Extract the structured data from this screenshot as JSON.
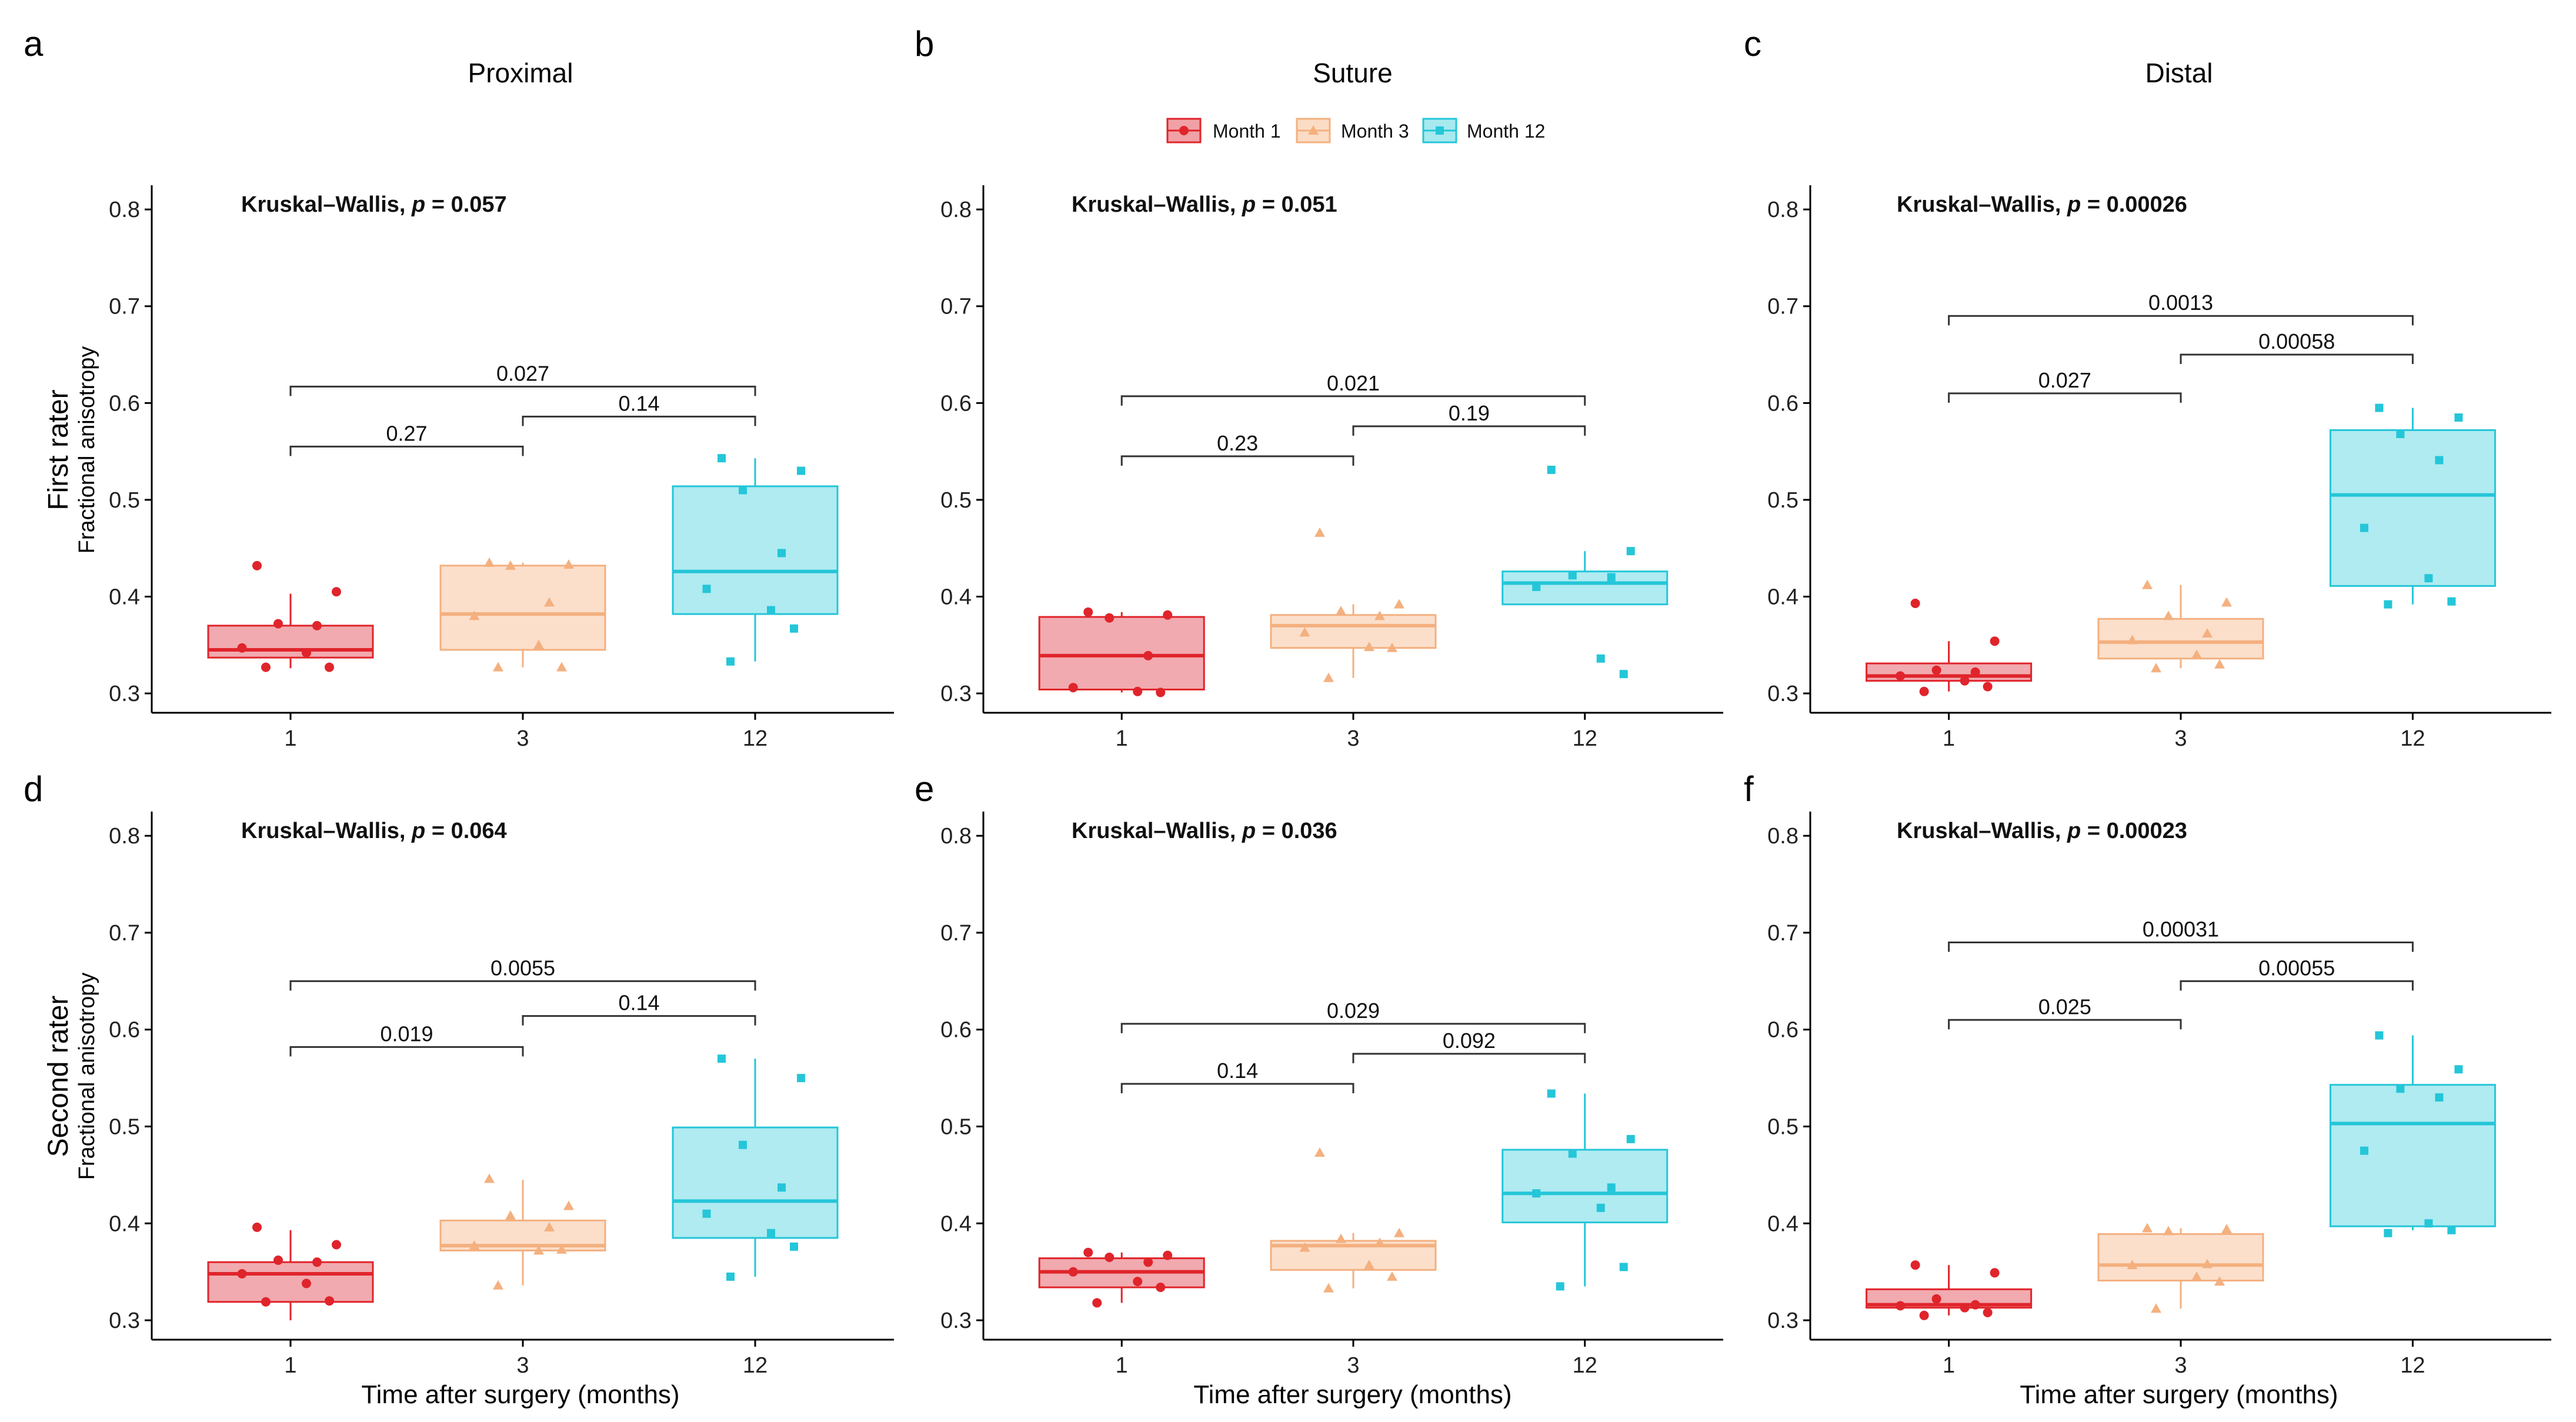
{
  "figure": {
    "legend": [
      {
        "label": "Month 1",
        "color": "#e0242b",
        "fill": "#f0a1a6",
        "marker": "circle"
      },
      {
        "label": "Month 3",
        "color": "#f4b07f",
        "fill": "#fbdcc5",
        "marker": "triangle"
      },
      {
        "label": "Month 12",
        "color": "#24c6d8",
        "fill": "#a6e9ef",
        "marker": "square"
      }
    ],
    "column_titles": [
      "Proximal",
      "Suture",
      "Distal"
    ],
    "row_labels": [
      "First rater",
      "Second rater"
    ],
    "y_axis_label": "Fractional anisotropy",
    "x_axis_label": "Time after surgery (months)"
  },
  "chart_data": [
    {
      "type": "box",
      "panel": "a",
      "row": 0,
      "col": 0,
      "region": "Proximal",
      "rater": "First rater",
      "title": "Proximal",
      "test": {
        "prefix": "Kruskal–Wallis, ",
        "p_label": "p",
        "p_value": "= 0.057"
      },
      "categories": [
        "1",
        "3",
        "12"
      ],
      "ylim": [
        0.28,
        0.825
      ],
      "yticks": [
        "0.3",
        "0.4",
        "0.5",
        "0.6",
        "0.7",
        "0.8"
      ],
      "boxes": [
        {
          "q1": 0.337,
          "median": 0.345,
          "q3": 0.37,
          "whisker_low": 0.326,
          "whisker_high": 0.403,
          "points": [
            0.432,
            0.405,
            0.372,
            0.37,
            0.347,
            0.342,
            0.327,
            0.327
          ]
        },
        {
          "q1": 0.345,
          "median": 0.382,
          "q3": 0.432,
          "whisker_low": 0.327,
          "whisker_high": 0.435,
          "points": [
            0.435,
            0.433,
            0.432,
            0.394,
            0.38,
            0.35,
            0.327,
            0.327
          ]
        },
        {
          "q1": 0.382,
          "median": 0.426,
          "q3": 0.514,
          "whisker_low": 0.333,
          "whisker_high": 0.543,
          "points": [
            0.543,
            0.53,
            0.51,
            0.445,
            0.408,
            0.386,
            0.367,
            0.333
          ]
        }
      ],
      "comparisons": [
        {
          "from": 0,
          "to": 1,
          "label": "0.27",
          "y": 0.555
        },
        {
          "from": 1,
          "to": 2,
          "label": "0.14",
          "y": 0.586
        },
        {
          "from": 0,
          "to": 2,
          "label": "0.027",
          "y": 0.617
        }
      ]
    },
    {
      "type": "box",
      "panel": "b",
      "row": 0,
      "col": 1,
      "region": "Suture",
      "rater": "First rater",
      "title": "Suture",
      "test": {
        "prefix": "Kruskal–Wallis, ",
        "p_label": "p",
        "p_value": "= 0.051"
      },
      "categories": [
        "1",
        "3",
        "12"
      ],
      "ylim": [
        0.28,
        0.825
      ],
      "yticks": [
        "0.3",
        "0.4",
        "0.5",
        "0.6",
        "0.7",
        "0.8"
      ],
      "boxes": [
        {
          "q1": 0.304,
          "median": 0.339,
          "q3": 0.379,
          "whisker_low": 0.301,
          "whisker_high": 0.384,
          "points": [
            0.384,
            0.381,
            0.378,
            0.339,
            0.306,
            0.302,
            0.301
          ]
        },
        {
          "q1": 0.347,
          "median": 0.37,
          "q3": 0.381,
          "whisker_low": 0.316,
          "whisker_high": 0.392,
          "points": [
            0.466,
            0.392,
            0.385,
            0.38,
            0.363,
            0.348,
            0.347,
            0.316
          ]
        },
        {
          "q1": 0.392,
          "median": 0.414,
          "q3": 0.426,
          "whisker_low": 0.392,
          "whisker_high": 0.447,
          "points": [
            0.531,
            0.447,
            0.422,
            0.42,
            0.41,
            0.336,
            0.32
          ]
        }
      ],
      "comparisons": [
        {
          "from": 0,
          "to": 1,
          "label": "0.23",
          "y": 0.545
        },
        {
          "from": 1,
          "to": 2,
          "label": "0.19",
          "y": 0.576
        },
        {
          "from": 0,
          "to": 2,
          "label": "0.021",
          "y": 0.607
        }
      ]
    },
    {
      "type": "box",
      "panel": "c",
      "row": 0,
      "col": 2,
      "region": "Distal",
      "rater": "First rater",
      "title": "Distal",
      "test": {
        "prefix": "Kruskal–Wallis, ",
        "p_label": "p",
        "p_value": "= 0.00026"
      },
      "categories": [
        "1",
        "3",
        "12"
      ],
      "ylim": [
        0.28,
        0.825
      ],
      "yticks": [
        "0.3",
        "0.4",
        "0.5",
        "0.6",
        "0.7",
        "0.8"
      ],
      "boxes": [
        {
          "q1": 0.313,
          "median": 0.318,
          "q3": 0.331,
          "whisker_low": 0.302,
          "whisker_high": 0.354,
          "points": [
            0.393,
            0.354,
            0.324,
            0.322,
            0.318,
            0.313,
            0.307,
            0.302
          ]
        },
        {
          "q1": 0.336,
          "median": 0.353,
          "q3": 0.377,
          "whisker_low": 0.326,
          "whisker_high": 0.412,
          "points": [
            0.412,
            0.394,
            0.38,
            0.362,
            0.355,
            0.34,
            0.33,
            0.326
          ]
        },
        {
          "q1": 0.411,
          "median": 0.505,
          "q3": 0.572,
          "whisker_low": 0.392,
          "whisker_high": 0.595,
          "points": [
            0.595,
            0.585,
            0.568,
            0.541,
            0.471,
            0.419,
            0.395,
            0.392
          ]
        }
      ],
      "comparisons": [
        {
          "from": 0,
          "to": 1,
          "label": "0.027",
          "y": 0.61
        },
        {
          "from": 1,
          "to": 2,
          "label": "0.00058",
          "y": 0.65
        },
        {
          "from": 0,
          "to": 2,
          "label": "0.0013",
          "y": 0.69
        }
      ]
    },
    {
      "type": "box",
      "panel": "d",
      "row": 1,
      "col": 0,
      "region": "Proximal",
      "rater": "Second rater",
      "title": "",
      "test": {
        "prefix": "Kruskal–Wallis, ",
        "p_label": "p",
        "p_value": "= 0.064"
      },
      "categories": [
        "1",
        "3",
        "12"
      ],
      "ylim": [
        0.28,
        0.825
      ],
      "yticks": [
        "0.3",
        "0.4",
        "0.5",
        "0.6",
        "0.7",
        "0.8"
      ],
      "boxes": [
        {
          "q1": 0.319,
          "median": 0.348,
          "q3": 0.36,
          "whisker_low": 0.3,
          "whisker_high": 0.393,
          "points": [
            0.396,
            0.378,
            0.362,
            0.36,
            0.348,
            0.338,
            0.32,
            0.319
          ]
        },
        {
          "q1": 0.372,
          "median": 0.377,
          "q3": 0.403,
          "whisker_low": 0.336,
          "whisker_high": 0.445,
          "points": [
            0.446,
            0.418,
            0.408,
            0.396,
            0.377,
            0.372,
            0.373,
            0.336
          ]
        },
        {
          "q1": 0.385,
          "median": 0.423,
          "q3": 0.499,
          "whisker_low": 0.345,
          "whisker_high": 0.57,
          "points": [
            0.57,
            0.55,
            0.481,
            0.437,
            0.41,
            0.39,
            0.376,
            0.345
          ]
        }
      ],
      "comparisons": [
        {
          "from": 0,
          "to": 1,
          "label": "0.019",
          "y": 0.582
        },
        {
          "from": 1,
          "to": 2,
          "label": "0.14",
          "y": 0.614
        },
        {
          "from": 0,
          "to": 2,
          "label": "0.0055",
          "y": 0.65
        }
      ]
    },
    {
      "type": "box",
      "panel": "e",
      "row": 1,
      "col": 1,
      "region": "Suture",
      "rater": "Second rater",
      "title": "",
      "test": {
        "prefix": "Kruskal–Wallis, ",
        "p_label": "p",
        "p_value": "= 0.036"
      },
      "categories": [
        "1",
        "3",
        "12"
      ],
      "ylim": [
        0.28,
        0.825
      ],
      "yticks": [
        "0.3",
        "0.4",
        "0.5",
        "0.6",
        "0.7",
        "0.8"
      ],
      "boxes": [
        {
          "q1": 0.334,
          "median": 0.35,
          "q3": 0.364,
          "whisker_low": 0.318,
          "whisker_high": 0.37,
          "points": [
            0.37,
            0.367,
            0.365,
            0.36,
            0.35,
            0.34,
            0.334,
            0.318
          ]
        },
        {
          "q1": 0.352,
          "median": 0.377,
          "q3": 0.382,
          "whisker_low": 0.333,
          "whisker_high": 0.39,
          "points": [
            0.473,
            0.39,
            0.384,
            0.38,
            0.375,
            0.357,
            0.345,
            0.333
          ]
        },
        {
          "q1": 0.401,
          "median": 0.431,
          "q3": 0.476,
          "whisker_low": 0.335,
          "whisker_high": 0.534,
          "points": [
            0.534,
            0.487,
            0.472,
            0.437,
            0.431,
            0.416,
            0.355,
            0.335
          ]
        }
      ],
      "comparisons": [
        {
          "from": 0,
          "to": 1,
          "label": "0.14",
          "y": 0.544
        },
        {
          "from": 1,
          "to": 2,
          "label": "0.092",
          "y": 0.575
        },
        {
          "from": 0,
          "to": 2,
          "label": "0.029",
          "y": 0.606
        }
      ]
    },
    {
      "type": "box",
      "panel": "f",
      "row": 1,
      "col": 2,
      "region": "Distal",
      "rater": "Second rater",
      "title": "",
      "test": {
        "prefix": "Kruskal–Wallis, ",
        "p_label": "p",
        "p_value": "= 0.00023"
      },
      "categories": [
        "1",
        "3",
        "12"
      ],
      "ylim": [
        0.28,
        0.825
      ],
      "yticks": [
        "0.3",
        "0.4",
        "0.5",
        "0.6",
        "0.7",
        "0.8"
      ],
      "boxes": [
        {
          "q1": 0.313,
          "median": 0.316,
          "q3": 0.332,
          "whisker_low": 0.305,
          "whisker_high": 0.357,
          "points": [
            0.357,
            0.349,
            0.322,
            0.316,
            0.315,
            0.313,
            0.308,
            0.305
          ]
        },
        {
          "q1": 0.341,
          "median": 0.357,
          "q3": 0.389,
          "whisker_low": 0.312,
          "whisker_high": 0.395,
          "points": [
            0.395,
            0.394,
            0.392,
            0.358,
            0.357,
            0.345,
            0.34,
            0.312
          ]
        },
        {
          "q1": 0.397,
          "median": 0.503,
          "q3": 0.543,
          "whisker_low": 0.393,
          "whisker_high": 0.594,
          "points": [
            0.594,
            0.559,
            0.539,
            0.53,
            0.475,
            0.4,
            0.393,
            0.39
          ]
        }
      ],
      "comparisons": [
        {
          "from": 0,
          "to": 1,
          "label": "0.025",
          "y": 0.61
        },
        {
          "from": 1,
          "to": 2,
          "label": "0.00055",
          "y": 0.65
        },
        {
          "from": 0,
          "to": 2,
          "label": "0.00031",
          "y": 0.69
        }
      ]
    }
  ]
}
